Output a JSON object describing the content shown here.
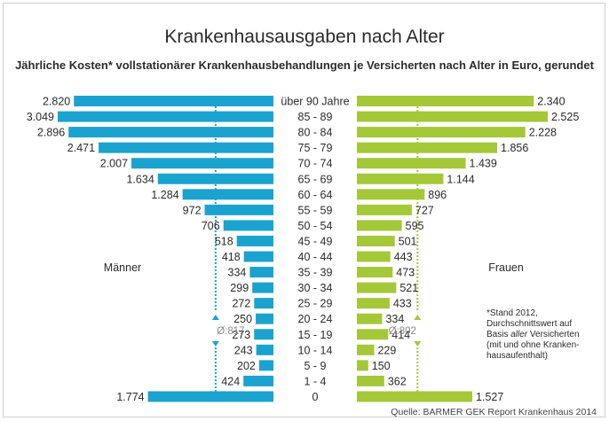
{
  "title": "Krankenhausausgaben nach Alter",
  "subtitle": "Jährliche Kosten* vollstationärer Krankenhausbehandlungen je Versicherten nach Alter in Euro, gerundet",
  "source": "Quelle: BARMER GEK Report Krankenhaus 2014",
  "footnote": [
    "*Stand 2012,",
    "Durchschnittswert auf",
    "Basis aller Versicherten",
    "(mit und ohne Kranken-",
    "hausaufenthalt)"
  ],
  "colors": {
    "men": "#1aa3cf",
    "women": "#a4c837",
    "text": "#2b2b2b",
    "avg_men": "#1aa3cf",
    "avg_women": "#a4c837"
  },
  "chart_data": {
    "type": "bar",
    "orientation": "horizontal-butterfly",
    "categories": [
      "über 90 Jahre",
      "85 - 89",
      "80 - 84",
      "75 - 79",
      "70 - 74",
      "65 - 69",
      "60 - 64",
      "55 - 59",
      "50 - 54",
      "45 - 49",
      "40 - 44",
      "35 - 39",
      "30 - 34",
      "25 - 29",
      "20 - 24",
      "15 - 19",
      "10 - 14",
      "5 - 9",
      "1 - 4",
      "0"
    ],
    "series": [
      {
        "name": "Männer",
        "values": [
          2820,
          3049,
          2896,
          2471,
          2007,
          1634,
          1284,
          972,
          706,
          518,
          418,
          334,
          299,
          272,
          250,
          273,
          243,
          202,
          424,
          1774
        ],
        "labels": [
          "2.820",
          "3.049",
          "2.896",
          "2.471",
          "2.007",
          "1.634",
          "1.284",
          "972",
          "706",
          "518",
          "418",
          "334",
          "299",
          "272",
          "250",
          "273",
          "243",
          "202",
          "424",
          "1.774"
        ],
        "average": 817,
        "average_label": "Ø:817"
      },
      {
        "name": "Frauen",
        "values": [
          2340,
          2525,
          2228,
          1856,
          1439,
          1144,
          896,
          727,
          595,
          501,
          443,
          473,
          521,
          433,
          334,
          414,
          229,
          150,
          362,
          1527
        ],
        "labels": [
          "2.340",
          "2.525",
          "2.228",
          "1.856",
          "1.439",
          "1.144",
          "896",
          "727",
          "595",
          "501",
          "443",
          "473",
          "521",
          "433",
          "334",
          "414",
          "229",
          "150",
          "362",
          "1.527"
        ],
        "average": 802,
        "average_label": "Ø:802"
      }
    ],
    "xlim": [
      0,
      3100
    ],
    "unit": "Euro",
    "legend": [
      "Männer",
      "Frauen"
    ]
  }
}
